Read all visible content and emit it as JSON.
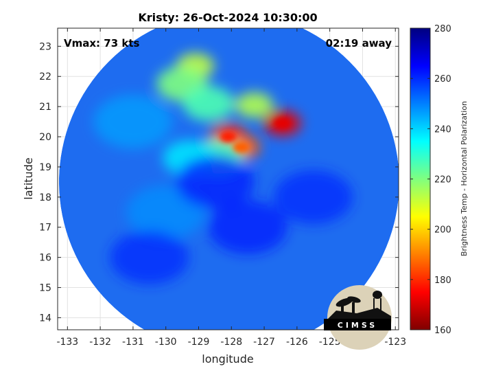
{
  "chart_data": {
    "type": "heatmap",
    "title": "Kristy: 26-Oct-2024 10:30:00",
    "annotations": {
      "vmax": "Vmax: 73 kts",
      "time_away": "02:19 away"
    },
    "xlabel": "longitude",
    "ylabel": "latitude",
    "xlim": [
      -133.3,
      -122.9
    ],
    "ylim": [
      13.6,
      23.6
    ],
    "x_ticks": [
      -133,
      -132,
      -131,
      -130,
      -129,
      -128,
      -127,
      -126,
      -125,
      -124,
      -123
    ],
    "y_ticks": [
      14,
      15,
      16,
      17,
      18,
      19,
      20,
      21,
      22,
      23
    ],
    "grid": true,
    "swath_center": [
      -128.07,
      18.5
    ],
    "colorbar": {
      "label": "Brightness Temp - Horizontal Polarization",
      "min": 160,
      "max": 280,
      "ticks": [
        160,
        180,
        200,
        220,
        240,
        260,
        280
      ],
      "colormap": "jet_reversed"
    },
    "features": [
      {
        "lon": -128.1,
        "lat": 20.0,
        "tb": 178
      },
      {
        "lon": -127.7,
        "lat": 19.65,
        "tb": 186
      },
      {
        "lon": -126.45,
        "lat": 20.45,
        "tb": 172
      },
      {
        "lon": -129.1,
        "lat": 22.35,
        "tb": 212
      },
      {
        "lon": -129.5,
        "lat": 21.75,
        "tb": 220
      },
      {
        "lon": -128.7,
        "lat": 21.1,
        "tb": 226
      },
      {
        "lon": -127.3,
        "lat": 21.05,
        "tb": 214
      },
      {
        "lon": -128.4,
        "lat": 19.35,
        "tb": 228
      },
      {
        "lon": -129.3,
        "lat": 19.3,
        "tb": 238
      },
      {
        "lon": -131.0,
        "lat": 20.5,
        "tb": 246
      },
      {
        "lon": -130.0,
        "lat": 17.5,
        "tb": 248
      },
      {
        "lon": -127.5,
        "lat": 17.0,
        "tb": 262
      },
      {
        "lon": -128.5,
        "lat": 18.5,
        "tb": 262
      },
      {
        "lon": -125.5,
        "lat": 18.0,
        "tb": 260
      },
      {
        "lon": -130.5,
        "lat": 16.0,
        "tb": 260
      }
    ]
  },
  "logo": {
    "text": "CIMSS"
  }
}
